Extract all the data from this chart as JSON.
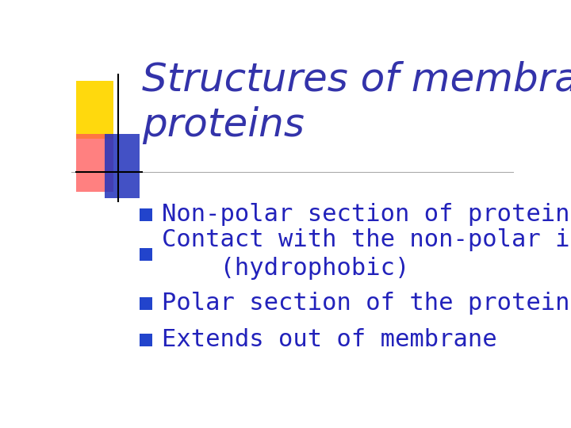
{
  "title_line1": "Structures of membrane",
  "title_line2": "proteins",
  "title_color": "#3333aa",
  "title_fontsize": 36,
  "bullet_color": "#2222bb",
  "bullet_marker_color": "#2244cc",
  "bullet_fontsize": 22,
  "bullets": [
    "Non-polar section of protein",
    "Contact with the non-polar interior\n    (hydrophobic)",
    "Polar section of the protein",
    "Extends out of membrane"
  ],
  "bg_color": "#ffffff",
  "sq_yellow": [
    0.01,
    0.735,
    0.085,
    0.175,
    "#FFD700"
  ],
  "sq_red": [
    0.01,
    0.575,
    0.085,
    0.175,
    "#FF5555"
  ],
  "sq_blue": [
    0.075,
    0.555,
    0.08,
    0.195,
    "#2233bb"
  ],
  "vline": [
    0.105,
    0.545,
    0.93
  ],
  "hline_full": [
    0.635,
    0.0,
    1.0
  ],
  "hline_cross": [
    0.635,
    0.01,
    0.16
  ]
}
